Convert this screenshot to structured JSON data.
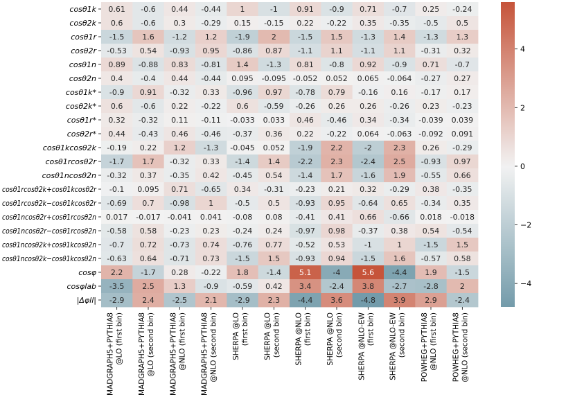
{
  "chart_data": {
    "type": "heatmap",
    "title": "",
    "xlabel": "",
    "ylabel": "",
    "rows": [
      "cosθ1k",
      "cosθ2k",
      "cosθ1r",
      "cosθ2r",
      "cosθ1n",
      "cosθ2n",
      "cosθ1k*",
      "cosθ2k*",
      "cosθ1r*",
      "cosθ2r*",
      "cosθ1kcosθ2k",
      "cosθ1rcosθ2r",
      "cosθ1ncosθ2n",
      "cosθ1rcosθ2k+cosθ1kcosθ2r",
      "cosθ1rcosθ2k−cosθ1kcosθ2r",
      "cosθ1ncosθ2r+cosθ1rcosθ2n",
      "cosθ1ncosθ2r−cosθ1rcosθ2n",
      "cosθ1ncosθ2k+cosθ1kcosθ2n",
      "cosθ1ncosθ2k−cosθ1kcosθ2n",
      "cosφ",
      "cosφlab",
      "|Δφll|"
    ],
    "columns": [
      [
        "MADGRAPH5+PYTHIA8",
        "@LO (first bin)"
      ],
      [
        "MADGRAPH5+PYTHIA8",
        "@LO (second bin)"
      ],
      [
        "MADGRAPH5+PYTHIA8",
        "@NLO (first bin)"
      ],
      [
        "MADGRAPH5+PYTHIA8",
        "@NLO (second bin)"
      ],
      [
        "SHERPA @LO",
        "(first bin)"
      ],
      [
        "SHERPA @LO",
        "(second bin)"
      ],
      [
        "SHERPA @NLO",
        "(first bin)"
      ],
      [
        "SHERPA @NLO",
        "(second bin)"
      ],
      [
        "SHERPA @NLO-EW",
        "(first bin)"
      ],
      [
        "SHERPA @NLO-EW",
        "(second bin)"
      ],
      [
        "POWHEG+PYTHIA8",
        "@NLO (first bin)"
      ],
      [
        "POWHEG+PYTHIA8",
        "@NLO (second bin)"
      ]
    ],
    "values": [
      [
        0.61,
        -0.6,
        0.44,
        -0.44,
        1,
        -1,
        0.91,
        -0.9,
        0.71,
        -0.7,
        0.25,
        -0.24
      ],
      [
        0.6,
        -0.6,
        0.3,
        -0.29,
        0.15,
        -0.15,
        0.22,
        -0.22,
        0.35,
        -0.35,
        -0.5,
        0.5
      ],
      [
        -1.5,
        1.6,
        -1.2,
        1.2,
        -1.9,
        2,
        -1.5,
        1.5,
        -1.3,
        1.4,
        -1.3,
        1.3
      ],
      [
        -0.53,
        0.54,
        -0.93,
        0.95,
        -0.86,
        0.87,
        -1.1,
        1.1,
        -1.1,
        1.1,
        -0.31,
        0.32
      ],
      [
        0.89,
        -0.88,
        0.83,
        -0.81,
        1.4,
        -1.3,
        0.81,
        -0.8,
        0.92,
        -0.9,
        0.71,
        -0.7
      ],
      [
        0.4,
        -0.4,
        0.44,
        -0.44,
        0.095,
        -0.095,
        -0.052,
        0.052,
        0.065,
        -0.064,
        -0.27,
        0.27
      ],
      [
        -0.9,
        0.91,
        -0.32,
        0.33,
        -0.96,
        0.97,
        -0.78,
        0.79,
        -0.16,
        0.16,
        -0.17,
        0.17
      ],
      [
        0.6,
        -0.6,
        0.22,
        -0.22,
        0.6,
        -0.59,
        -0.26,
        0.26,
        0.26,
        -0.26,
        0.23,
        -0.23
      ],
      [
        0.32,
        -0.32,
        0.11,
        -0.11,
        -0.033,
        0.033,
        0.46,
        -0.46,
        0.34,
        -0.34,
        -0.039,
        0.039
      ],
      [
        0.44,
        -0.43,
        0.46,
        -0.46,
        -0.37,
        0.36,
        0.22,
        -0.22,
        0.064,
        -0.063,
        -0.092,
        0.091
      ],
      [
        -0.19,
        0.22,
        1.2,
        -1.3,
        -0.045,
        0.052,
        -1.9,
        2.2,
        -2,
        2.3,
        0.26,
        -0.29
      ],
      [
        -1.7,
        1.7,
        -0.32,
        0.33,
        -1.4,
        1.4,
        -2.2,
        2.3,
        -2.4,
        2.5,
        -0.93,
        0.97
      ],
      [
        -0.32,
        0.37,
        -0.35,
        0.42,
        -0.45,
        0.54,
        -1.4,
        1.7,
        -1.6,
        1.9,
        -0.55,
        0.66
      ],
      [
        -0.1,
        0.095,
        0.71,
        -0.65,
        0.34,
        -0.31,
        -0.23,
        0.21,
        0.32,
        -0.29,
        0.38,
        -0.35
      ],
      [
        -0.69,
        0.7,
        -0.98,
        1,
        -0.5,
        0.5,
        -0.93,
        0.95,
        -0.64,
        0.65,
        -0.34,
        0.35
      ],
      [
        0.017,
        -0.017,
        -0.041,
        0.041,
        -0.08,
        0.08,
        -0.41,
        0.41,
        0.66,
        -0.66,
        0.018,
        -0.018
      ],
      [
        -0.58,
        0.58,
        -0.23,
        0.23,
        -0.24,
        0.24,
        -0.97,
        0.98,
        -0.37,
        0.38,
        0.54,
        -0.54
      ],
      [
        -0.7,
        0.72,
        -0.73,
        0.74,
        -0.76,
        0.77,
        -0.52,
        0.53,
        -1,
        1,
        -1.5,
        1.5
      ],
      [
        -0.63,
        0.64,
        -0.71,
        0.73,
        -1.5,
        1.5,
        -0.93,
        0.94,
        -1.5,
        1.6,
        -0.57,
        0.58
      ],
      [
        2.2,
        -1.7,
        0.28,
        -0.22,
        1.8,
        -1.4,
        5.1,
        -4,
        5.6,
        -4.4,
        1.9,
        -1.5
      ],
      [
        -3.5,
        2.5,
        1.3,
        -0.9,
        -0.59,
        0.42,
        3.4,
        -2.4,
        3.8,
        -2.7,
        -2.8,
        2
      ],
      [
        -2.9,
        2.4,
        -2.5,
        2.1,
        -2.9,
        2.3,
        -4.4,
        3.6,
        -4.8,
        3.9,
        2.9,
        -2.4
      ]
    ],
    "value_labels": [
      [
        "0.61",
        "-0.6",
        "0.44",
        "-0.44",
        "1",
        "-1",
        "0.91",
        "-0.9",
        "0.71",
        "-0.7",
        "0.25",
        "-0.24"
      ],
      [
        "0.6",
        "-0.6",
        "0.3",
        "-0.29",
        "0.15",
        "-0.15",
        "0.22",
        "-0.22",
        "0.35",
        "-0.35",
        "-0.5",
        "0.5"
      ],
      [
        "-1.5",
        "1.6",
        "-1.2",
        "1.2",
        "-1.9",
        "2",
        "-1.5",
        "1.5",
        "-1.3",
        "1.4",
        "-1.3",
        "1.3"
      ],
      [
        "-0.53",
        "0.54",
        "-0.93",
        "0.95",
        "-0.86",
        "0.87",
        "-1.1",
        "1.1",
        "-1.1",
        "1.1",
        "-0.31",
        "0.32"
      ],
      [
        "0.89",
        "-0.88",
        "0.83",
        "-0.81",
        "1.4",
        "-1.3",
        "0.81",
        "-0.8",
        "0.92",
        "-0.9",
        "0.71",
        "-0.7"
      ],
      [
        "0.4",
        "-0.4",
        "0.44",
        "-0.44",
        "0.095",
        "-0.095",
        "-0.052",
        "0.052",
        "0.065",
        "-0.064",
        "-0.27",
        "0.27"
      ],
      [
        "-0.9",
        "0.91",
        "-0.32",
        "0.33",
        "-0.96",
        "0.97",
        "-0.78",
        "0.79",
        "-0.16",
        "0.16",
        "-0.17",
        "0.17"
      ],
      [
        "0.6",
        "-0.6",
        "0.22",
        "-0.22",
        "0.6",
        "-0.59",
        "-0.26",
        "0.26",
        "0.26",
        "-0.26",
        "0.23",
        "-0.23"
      ],
      [
        "0.32",
        "-0.32",
        "0.11",
        "-0.11",
        "-0.033",
        "0.033",
        "0.46",
        "-0.46",
        "0.34",
        "-0.34",
        "-0.039",
        "0.039"
      ],
      [
        "0.44",
        "-0.43",
        "0.46",
        "-0.46",
        "-0.37",
        "0.36",
        "0.22",
        "-0.22",
        "0.064",
        "-0.063",
        "-0.092",
        "0.091"
      ],
      [
        "-0.19",
        "0.22",
        "1.2",
        "-1.3",
        "-0.045",
        "0.052",
        "-1.9",
        "2.2",
        "-2",
        "2.3",
        "0.26",
        "-0.29"
      ],
      [
        "-1.7",
        "1.7",
        "-0.32",
        "0.33",
        "-1.4",
        "1.4",
        "-2.2",
        "2.3",
        "-2.4",
        "2.5",
        "-0.93",
        "0.97"
      ],
      [
        "-0.32",
        "0.37",
        "-0.35",
        "0.42",
        "-0.45",
        "0.54",
        "-1.4",
        "1.7",
        "-1.6",
        "1.9",
        "-0.55",
        "0.66"
      ],
      [
        "-0.1",
        "0.095",
        "0.71",
        "-0.65",
        "0.34",
        "-0.31",
        "-0.23",
        "0.21",
        "0.32",
        "-0.29",
        "0.38",
        "-0.35"
      ],
      [
        "-0.69",
        "0.7",
        "-0.98",
        "1",
        "-0.5",
        "0.5",
        "-0.93",
        "0.95",
        "-0.64",
        "0.65",
        "-0.34",
        "0.35"
      ],
      [
        "0.017",
        "-0.017",
        "-0.041",
        "0.041",
        "-0.08",
        "0.08",
        "-0.41",
        "0.41",
        "0.66",
        "-0.66",
        "0.018",
        "-0.018"
      ],
      [
        "-0.58",
        "0.58",
        "-0.23",
        "0.23",
        "-0.24",
        "0.24",
        "-0.97",
        "0.98",
        "-0.37",
        "0.38",
        "0.54",
        "-0.54"
      ],
      [
        "-0.7",
        "0.72",
        "-0.73",
        "0.74",
        "-0.76",
        "0.77",
        "-0.52",
        "0.53",
        "-1",
        "1",
        "-1.5",
        "1.5"
      ],
      [
        "-0.63",
        "0.64",
        "-0.71",
        "0.73",
        "-1.5",
        "1.5",
        "-0.93",
        "0.94",
        "-1.5",
        "1.6",
        "-0.57",
        "0.58"
      ],
      [
        "2.2",
        "-1.7",
        "0.28",
        "-0.22",
        "1.8",
        "-1.4",
        "5.1",
        "-4",
        "5.6",
        "-4.4",
        "1.9",
        "-1.5"
      ],
      [
        "-3.5",
        "2.5",
        "1.3",
        "-0.9",
        "-0.59",
        "0.42",
        "3.4",
        "-2.4",
        "3.8",
        "-2.7",
        "-2.8",
        "2"
      ],
      [
        "-2.9",
        "2.4",
        "-2.5",
        "2.1",
        "-2.9",
        "2.3",
        "-4.4",
        "3.6",
        "-4.8",
        "3.9",
        "2.9",
        "-2.4"
      ]
    ],
    "colorbar": {
      "vmin": -4.8,
      "vmax": 5.6,
      "ticks": [
        -4,
        -2,
        0,
        2,
        4
      ],
      "tick_labels": [
        "−4",
        "−2",
        "0",
        "2",
        "4"
      ],
      "cmap": "diverging blue-white-red",
      "colors": {
        "negative": "#5e8d9e",
        "center": "#f2f2f2",
        "positive": "#c6543a"
      }
    },
    "grid": false,
    "legend": "colorbar right"
  }
}
